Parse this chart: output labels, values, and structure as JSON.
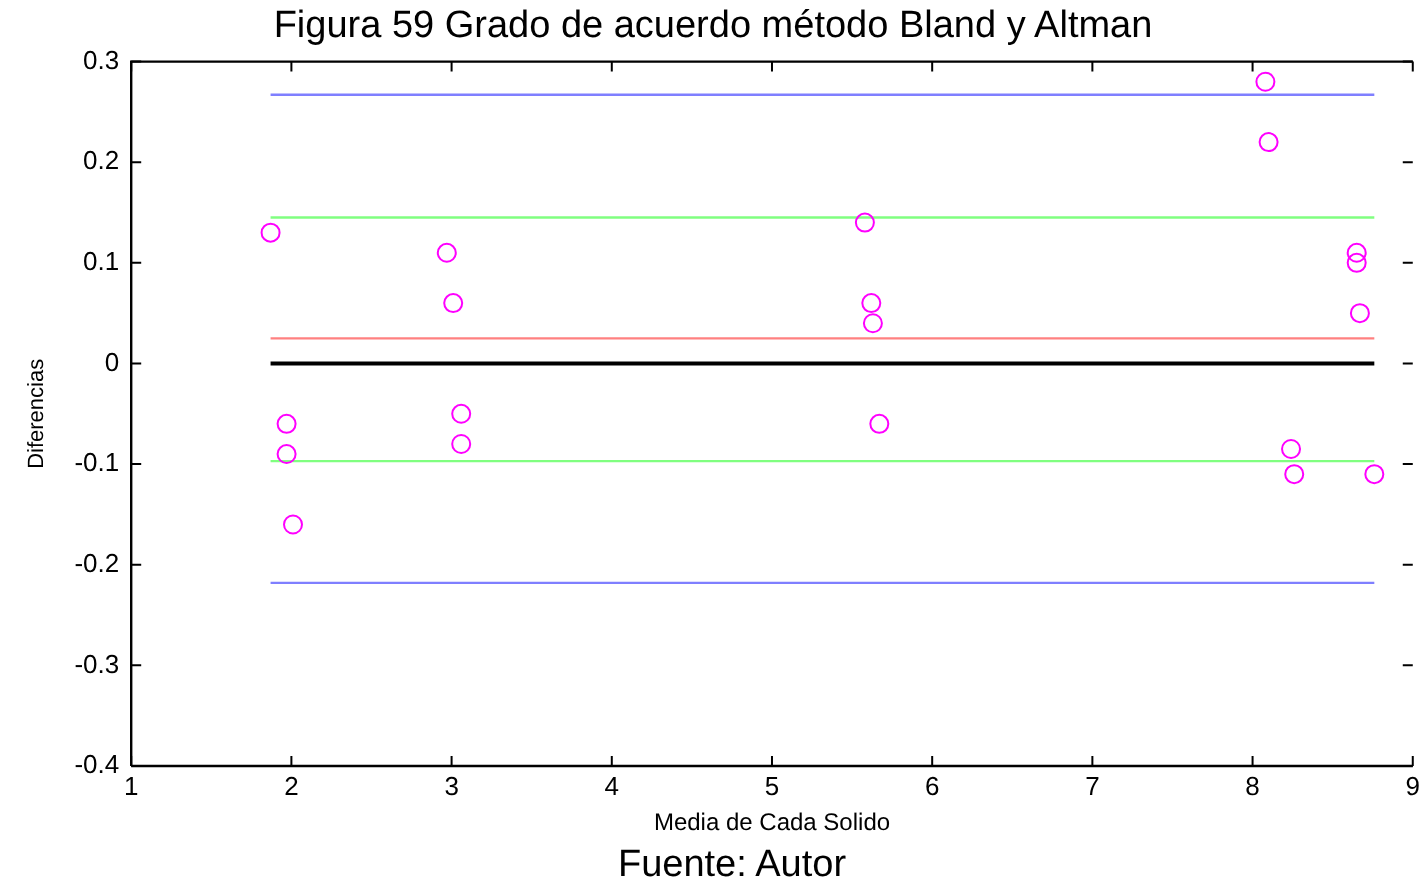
{
  "chart_data": {
    "type": "scatter",
    "title": "Figura 59 Grado de acuerdo método Bland y Altman",
    "xlabel": "Media de Cada Solido",
    "ylabel": "Diferencias",
    "annotations": [
      "Fuente: Autor"
    ],
    "series": [
      {
        "color": "#ff00ff",
        "x": [
          1.87,
          1.97,
          1.97,
          2.01,
          2.97,
          3.01,
          3.06,
          3.06,
          5.58,
          5.62,
          5.63,
          5.67,
          8.08,
          8.1,
          8.65,
          8.65,
          8.67,
          8.24,
          8.26,
          8.76
        ],
        "values": [
          0.13,
          -0.06,
          -0.09,
          -0.16,
          0.11,
          0.06,
          -0.05,
          -0.08,
          0.14,
          0.06,
          0.04,
          -0.06,
          0.28,
          0.22,
          0.11,
          0.1,
          0.05,
          -0.085,
          -0.11,
          -0.11
        ]
      }
    ],
    "ref_lines": [
      {
        "axis": "y",
        "value": 0.267,
        "color": "#7f7fff"
      },
      {
        "axis": "y",
        "value": 0.145,
        "color": "#80ff80"
      },
      {
        "axis": "y",
        "value": 0.025,
        "color": "#ff8080"
      },
      {
        "axis": "y",
        "value": 0,
        "color": "#000000"
      },
      {
        "axis": "y",
        "value": -0.097,
        "color": "#80ff80"
      },
      {
        "axis": "y",
        "value": -0.218,
        "color": "#7f7fff"
      }
    ],
    "xlim": [
      1,
      9
    ],
    "xticks": [
      1,
      2,
      3,
      4,
      5,
      6,
      7,
      8,
      9
    ],
    "ylim": [
      -0.4,
      0.3
    ],
    "yticks": [
      -0.4,
      -0.3,
      -0.2,
      -0.1,
      0,
      0.1,
      0.2,
      0.3
    ],
    "grid": false,
    "legend": false,
    "marker": "circle"
  }
}
